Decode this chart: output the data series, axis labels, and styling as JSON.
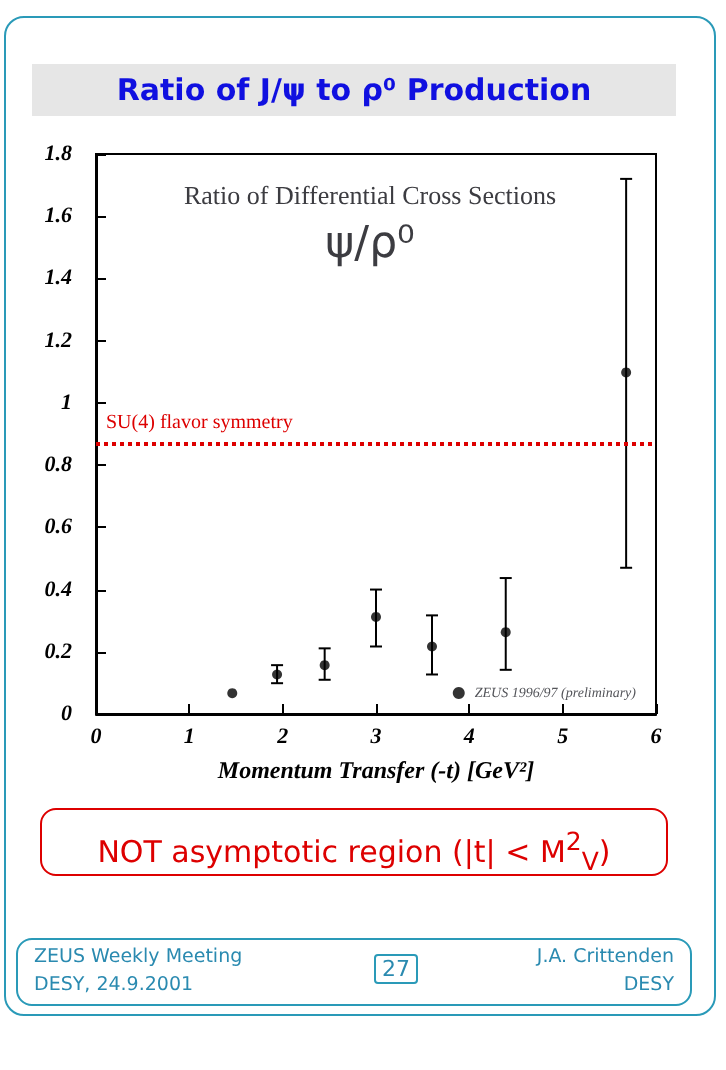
{
  "chart_data": {
    "type": "scatter",
    "title": "Ratio of J/ψ to ρ⁰ Production",
    "subtitle": "Ratio of Differential Cross Sections",
    "xlabel": "Momentum Transfer (-t) [GeV²]",
    "annotations": [
      "ψ/ρ⁰",
      "NOT asymptotic region (|t| < M$^{2}$$_{V}$)",
      "ZEUS Weekly Meeting",
      "DESY, 24.9.2001",
      "27",
      "J.A. Crittenden",
      "DESY"
    ],
    "series": [
      {
        "name": "ZEUS 1996/97 (preliminary)",
        "color": "#000000",
        "x": [
          1.46,
          1.94,
          2.45,
          3.0,
          3.6,
          4.39,
          5.68
        ],
        "values": [
          0.067,
          0.127,
          0.157,
          0.312,
          0.217,
          0.263,
          1.098
        ],
        "errors": [
          null,
          [
            0.099,
            0.157
          ],
          [
            0.11,
            0.211
          ],
          [
            0.217,
            0.4
          ],
          [
            0.127,
            0.317
          ],
          [
            0.142,
            0.437
          ],
          [
            0.47,
            1.72
          ]
        ]
      }
    ],
    "xlim": [
      0,
      6
    ],
    "xticks": [
      0,
      1,
      2,
      3,
      4,
      5,
      6
    ],
    "ylim": [
      0,
      1.8
    ],
    "yticks": [
      0,
      0.2,
      0.4,
      0.6,
      0.8,
      1,
      1.2,
      1.4,
      1.6,
      1.8
    ],
    "ref_lines": [
      {
        "axis": "y",
        "value": 0.872,
        "label": "SU(4) flavor symmetry",
        "color": "#dd0000",
        "line_style": "dotted"
      }
    ],
    "grid": false,
    "legend": "bottom right",
    "marker": "circle"
  }
}
